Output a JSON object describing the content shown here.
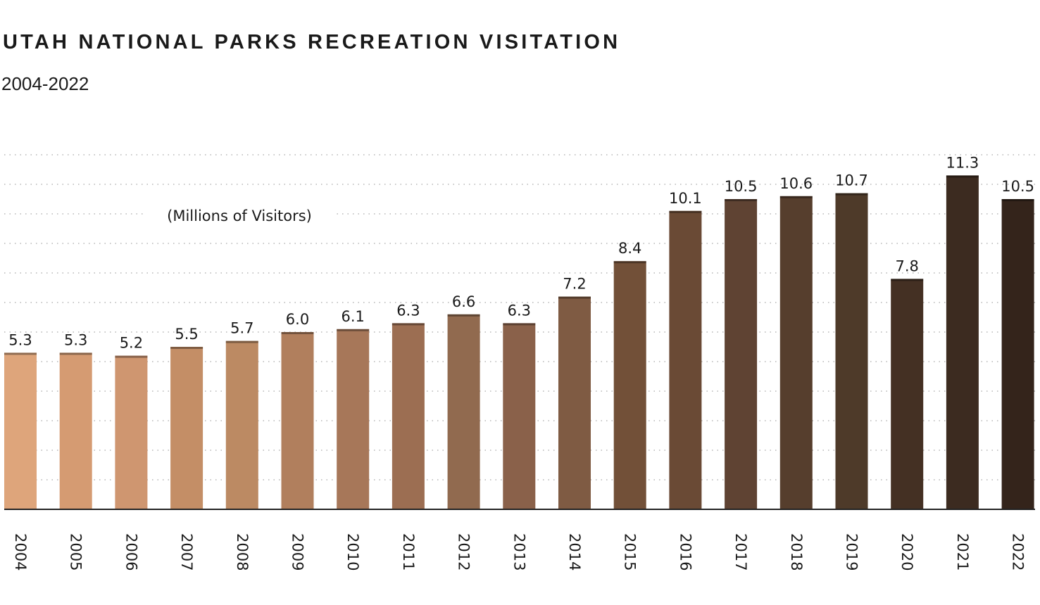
{
  "header": {
    "title": "UTAH NATIONAL PARKS RECREATION VISITATION",
    "subtitle": "2004-2022"
  },
  "chart_data": {
    "type": "bar",
    "title": "UTAH NATIONAL PARKS RECREATION VISITATION",
    "subtitle": "2004-2022",
    "unit_label": "(Millions of Visitors)",
    "categories": [
      "2004",
      "2005",
      "2006",
      "2007",
      "2008",
      "2009",
      "2010",
      "2011",
      "2012",
      "2013",
      "2014",
      "2015",
      "2016",
      "2017",
      "2018",
      "2019",
      "2020",
      "2021",
      "2022"
    ],
    "values": [
      5.3,
      5.3,
      5.2,
      5.5,
      5.7,
      6.0,
      6.1,
      6.3,
      6.6,
      6.3,
      7.2,
      8.4,
      10.1,
      10.5,
      10.6,
      10.7,
      7.8,
      11.3,
      10.5
    ],
    "value_labels": [
      "5.3",
      "5.3",
      "5.2",
      "5.5",
      "5.7",
      "6.0",
      "6.1",
      "6.3",
      "6.6",
      "6.3",
      "7.2",
      "8.4",
      "10.1",
      "10.5",
      "10.6",
      "10.7",
      "7.8",
      "11.3",
      "10.5"
    ],
    "colors": [
      "#dea57b",
      "#d59b72",
      "#cf9670",
      "#c48e66",
      "#bc8a63",
      "#b17f5d",
      "#a77759",
      "#9c6e52",
      "#916a4f",
      "#8a614a",
      "#7f5b43",
      "#725038",
      "#6a4a35",
      "#5f4333",
      "#563e2d",
      "#4e3a29",
      "#443023",
      "#3c2b20",
      "#34241b"
    ],
    "ylim": [
      0,
      12
    ],
    "grid": true,
    "grid_style": "dotted",
    "xlabel": "",
    "ylabel": ""
  }
}
